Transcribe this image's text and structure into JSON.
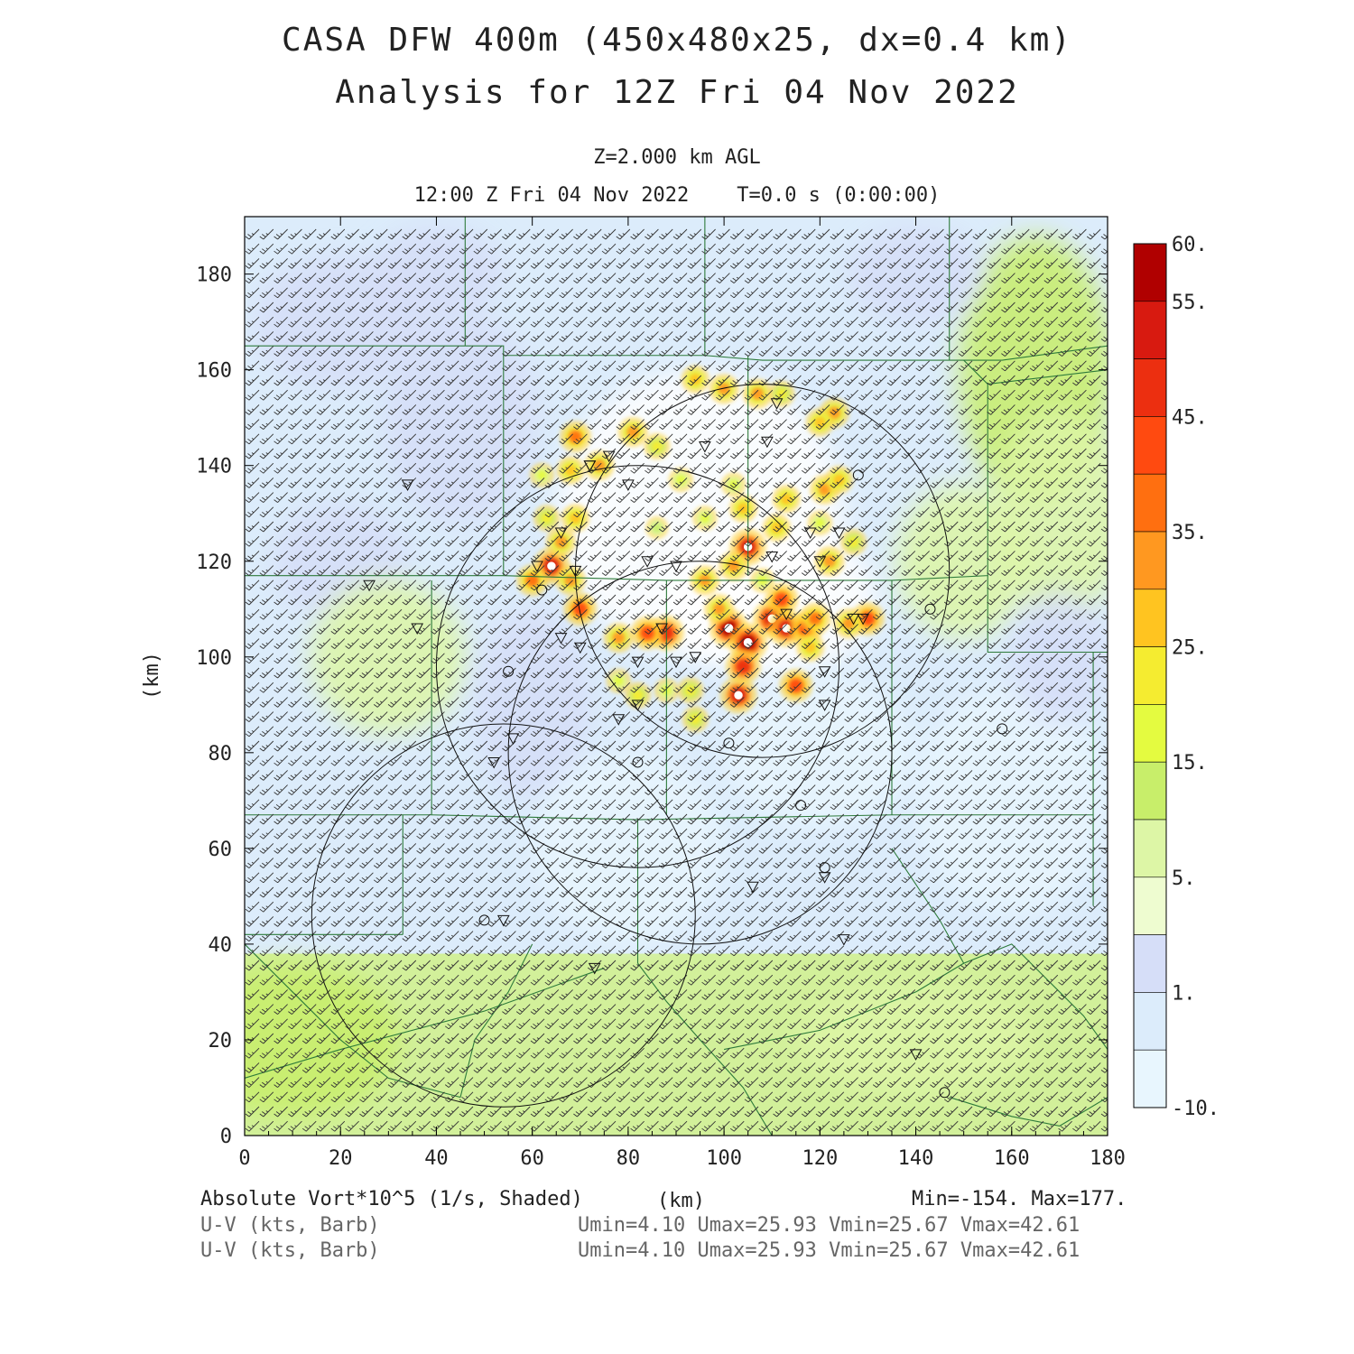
{
  "header": {
    "title_line1": "CASA DFW 400m (450x480x25, dx=0.4 km)",
    "title_line2": "Analysis for 12Z Fri 04 Nov 2022",
    "level": "Z=2.000 km AGL",
    "valid_time": "12:00 Z Fri 04 Nov 2022    T=0.0 s (0:00:00)"
  },
  "axes": {
    "xlabel": "(km)",
    "ylabel": "(km)",
    "xlim": [
      0,
      180
    ],
    "ylim": [
      0,
      192
    ],
    "xticks": [
      "0",
      "20",
      "40",
      "60",
      "80",
      "100",
      "120",
      "140",
      "160",
      "180"
    ],
    "yticks": [
      "0",
      "20",
      "40",
      "60",
      "80",
      "100",
      "120",
      "140",
      "160",
      "180"
    ]
  },
  "colorbar": {
    "labels": [
      "60.",
      "55.",
      "45.",
      "35.",
      "25.",
      "15.",
      "5.",
      "1.",
      "-10."
    ],
    "colors": [
      "#b00000",
      "#d81a10",
      "#ec2f10",
      "#ff4a10",
      "#ff6f10",
      "#ff9820",
      "#ffc420",
      "#f5ec30",
      "#e4fb40",
      "#c8ee6a",
      "#ddf6a6",
      "#eefcd0",
      "#d6def8",
      "#dcecfb",
      "#e8f6fe"
    ]
  },
  "footer": {
    "field": "Absolute Vort*10^5 (1/s, Shaded)",
    "units": "(km)",
    "minmax": "Min=-154. Max=177.",
    "barb1": "U-V (kts, Barb)",
    "barb2": "U-V (kts, Barb)",
    "stats1": "Umin=4.10 Umax=25.93 Vmin=25.67 Vmax=42.61",
    "stats2": "Umin=4.10 Umax=25.93 Vmin=25.67 Vmax=42.61"
  },
  "map_data": {
    "radar_rings": [
      {
        "cx": 108,
        "cy": 118,
        "r": 39
      },
      {
        "cx": 82,
        "cy": 98,
        "r": 42
      },
      {
        "cx": 95,
        "cy": 80,
        "r": 40
      },
      {
        "cx": 54,
        "cy": 46,
        "r": 40
      }
    ],
    "stations_triangle": [
      [
        34,
        136
      ],
      [
        26,
        115
      ],
      [
        36,
        106
      ],
      [
        56,
        83
      ],
      [
        52,
        78
      ],
      [
        54,
        45
      ],
      [
        73,
        35
      ],
      [
        66,
        126
      ],
      [
        72,
        140
      ],
      [
        76,
        142
      ],
      [
        80,
        136
      ],
      [
        72,
        140
      ],
      [
        61,
        119
      ],
      [
        69,
        118
      ],
      [
        84,
        120
      ],
      [
        90,
        119
      ],
      [
        96,
        144
      ],
      [
        109,
        145
      ],
      [
        111,
        153
      ],
      [
        118,
        126
      ],
      [
        124,
        126
      ],
      [
        120,
        120
      ],
      [
        110,
        121
      ],
      [
        87,
        106
      ],
      [
        66,
        104
      ],
      [
        70,
        102
      ],
      [
        82,
        99
      ],
      [
        90,
        99
      ],
      [
        94,
        100
      ],
      [
        121,
        97
      ],
      [
        121,
        90
      ],
      [
        78,
        87
      ],
      [
        82,
        90
      ],
      [
        106,
        52
      ],
      [
        121,
        54
      ],
      [
        125,
        41
      ],
      [
        140,
        17
      ],
      [
        113,
        109
      ],
      [
        127,
        108
      ],
      [
        129,
        108
      ]
    ],
    "stations_circle": [
      [
        121,
        56
      ],
      [
        62,
        114
      ],
      [
        55,
        97
      ],
      [
        101,
        82
      ],
      [
        82,
        78
      ],
      [
        116,
        69
      ],
      [
        50,
        45
      ],
      [
        128,
        138
      ],
      [
        143,
        110
      ],
      [
        158,
        85
      ],
      [
        146,
        9
      ]
    ],
    "vort_hotspots": [
      {
        "x": 101,
        "y": 106,
        "v": 60
      },
      {
        "x": 105,
        "y": 103,
        "v": 60
      },
      {
        "x": 110,
        "y": 108,
        "v": 58
      },
      {
        "x": 113,
        "y": 106,
        "v": 55
      },
      {
        "x": 103,
        "y": 92,
        "v": 55
      },
      {
        "x": 104,
        "y": 98,
        "v": 50
      },
      {
        "x": 115,
        "y": 94,
        "v": 45
      },
      {
        "x": 117,
        "y": 106,
        "v": 45
      },
      {
        "x": 119,
        "y": 108,
        "v": 40
      },
      {
        "x": 130,
        "y": 108,
        "v": 45
      },
      {
        "x": 126,
        "y": 107,
        "v": 35
      },
      {
        "x": 112,
        "y": 112,
        "v": 45
      },
      {
        "x": 105,
        "y": 123,
        "v": 55
      },
      {
        "x": 102,
        "y": 119,
        "v": 35
      },
      {
        "x": 88,
        "y": 105,
        "v": 50
      },
      {
        "x": 84,
        "y": 105,
        "v": 45
      },
      {
        "x": 78,
        "y": 104,
        "v": 35
      },
      {
        "x": 70,
        "y": 110,
        "v": 45
      },
      {
        "x": 64,
        "y": 119,
        "v": 55
      },
      {
        "x": 60,
        "y": 116,
        "v": 40
      },
      {
        "x": 68,
        "y": 116,
        "v": 35
      },
      {
        "x": 66,
        "y": 124,
        "v": 35
      },
      {
        "x": 69,
        "y": 129,
        "v": 30
      },
      {
        "x": 63,
        "y": 129,
        "v": 25
      },
      {
        "x": 69,
        "y": 146,
        "v": 40
      },
      {
        "x": 74,
        "y": 140,
        "v": 35
      },
      {
        "x": 81,
        "y": 147,
        "v": 35
      },
      {
        "x": 86,
        "y": 144,
        "v": 25
      },
      {
        "x": 68,
        "y": 139,
        "v": 30
      },
      {
        "x": 62,
        "y": 138,
        "v": 20
      },
      {
        "x": 94,
        "y": 158,
        "v": 30
      },
      {
        "x": 100,
        "y": 156,
        "v": 35
      },
      {
        "x": 107,
        "y": 155,
        "v": 35
      },
      {
        "x": 112,
        "y": 155,
        "v": 25
      },
      {
        "x": 123,
        "y": 151,
        "v": 35
      },
      {
        "x": 120,
        "y": 149,
        "v": 30
      },
      {
        "x": 121,
        "y": 135,
        "v": 35
      },
      {
        "x": 124,
        "y": 137,
        "v": 30
      },
      {
        "x": 113,
        "y": 133,
        "v": 30
      },
      {
        "x": 111,
        "y": 127,
        "v": 30
      },
      {
        "x": 104,
        "y": 131,
        "v": 30
      },
      {
        "x": 102,
        "y": 136,
        "v": 20
      },
      {
        "x": 122,
        "y": 120,
        "v": 35
      },
      {
        "x": 127,
        "y": 124,
        "v": 25
      },
      {
        "x": 120,
        "y": 128,
        "v": 20
      },
      {
        "x": 108,
        "y": 116,
        "v": 20
      },
      {
        "x": 96,
        "y": 116,
        "v": 35
      },
      {
        "x": 93,
        "y": 93,
        "v": 25
      },
      {
        "x": 88,
        "y": 93,
        "v": 20
      },
      {
        "x": 94,
        "y": 87,
        "v": 25
      },
      {
        "x": 82,
        "y": 92,
        "v": 25
      },
      {
        "x": 78,
        "y": 95,
        "v": 20
      },
      {
        "x": 118,
        "y": 102,
        "v": 30
      },
      {
        "x": 96,
        "y": 129,
        "v": 20
      },
      {
        "x": 91,
        "y": 137,
        "v": 20
      },
      {
        "x": 86,
        "y": 127,
        "v": 15
      },
      {
        "x": 99,
        "y": 110,
        "v": 35
      }
    ]
  }
}
